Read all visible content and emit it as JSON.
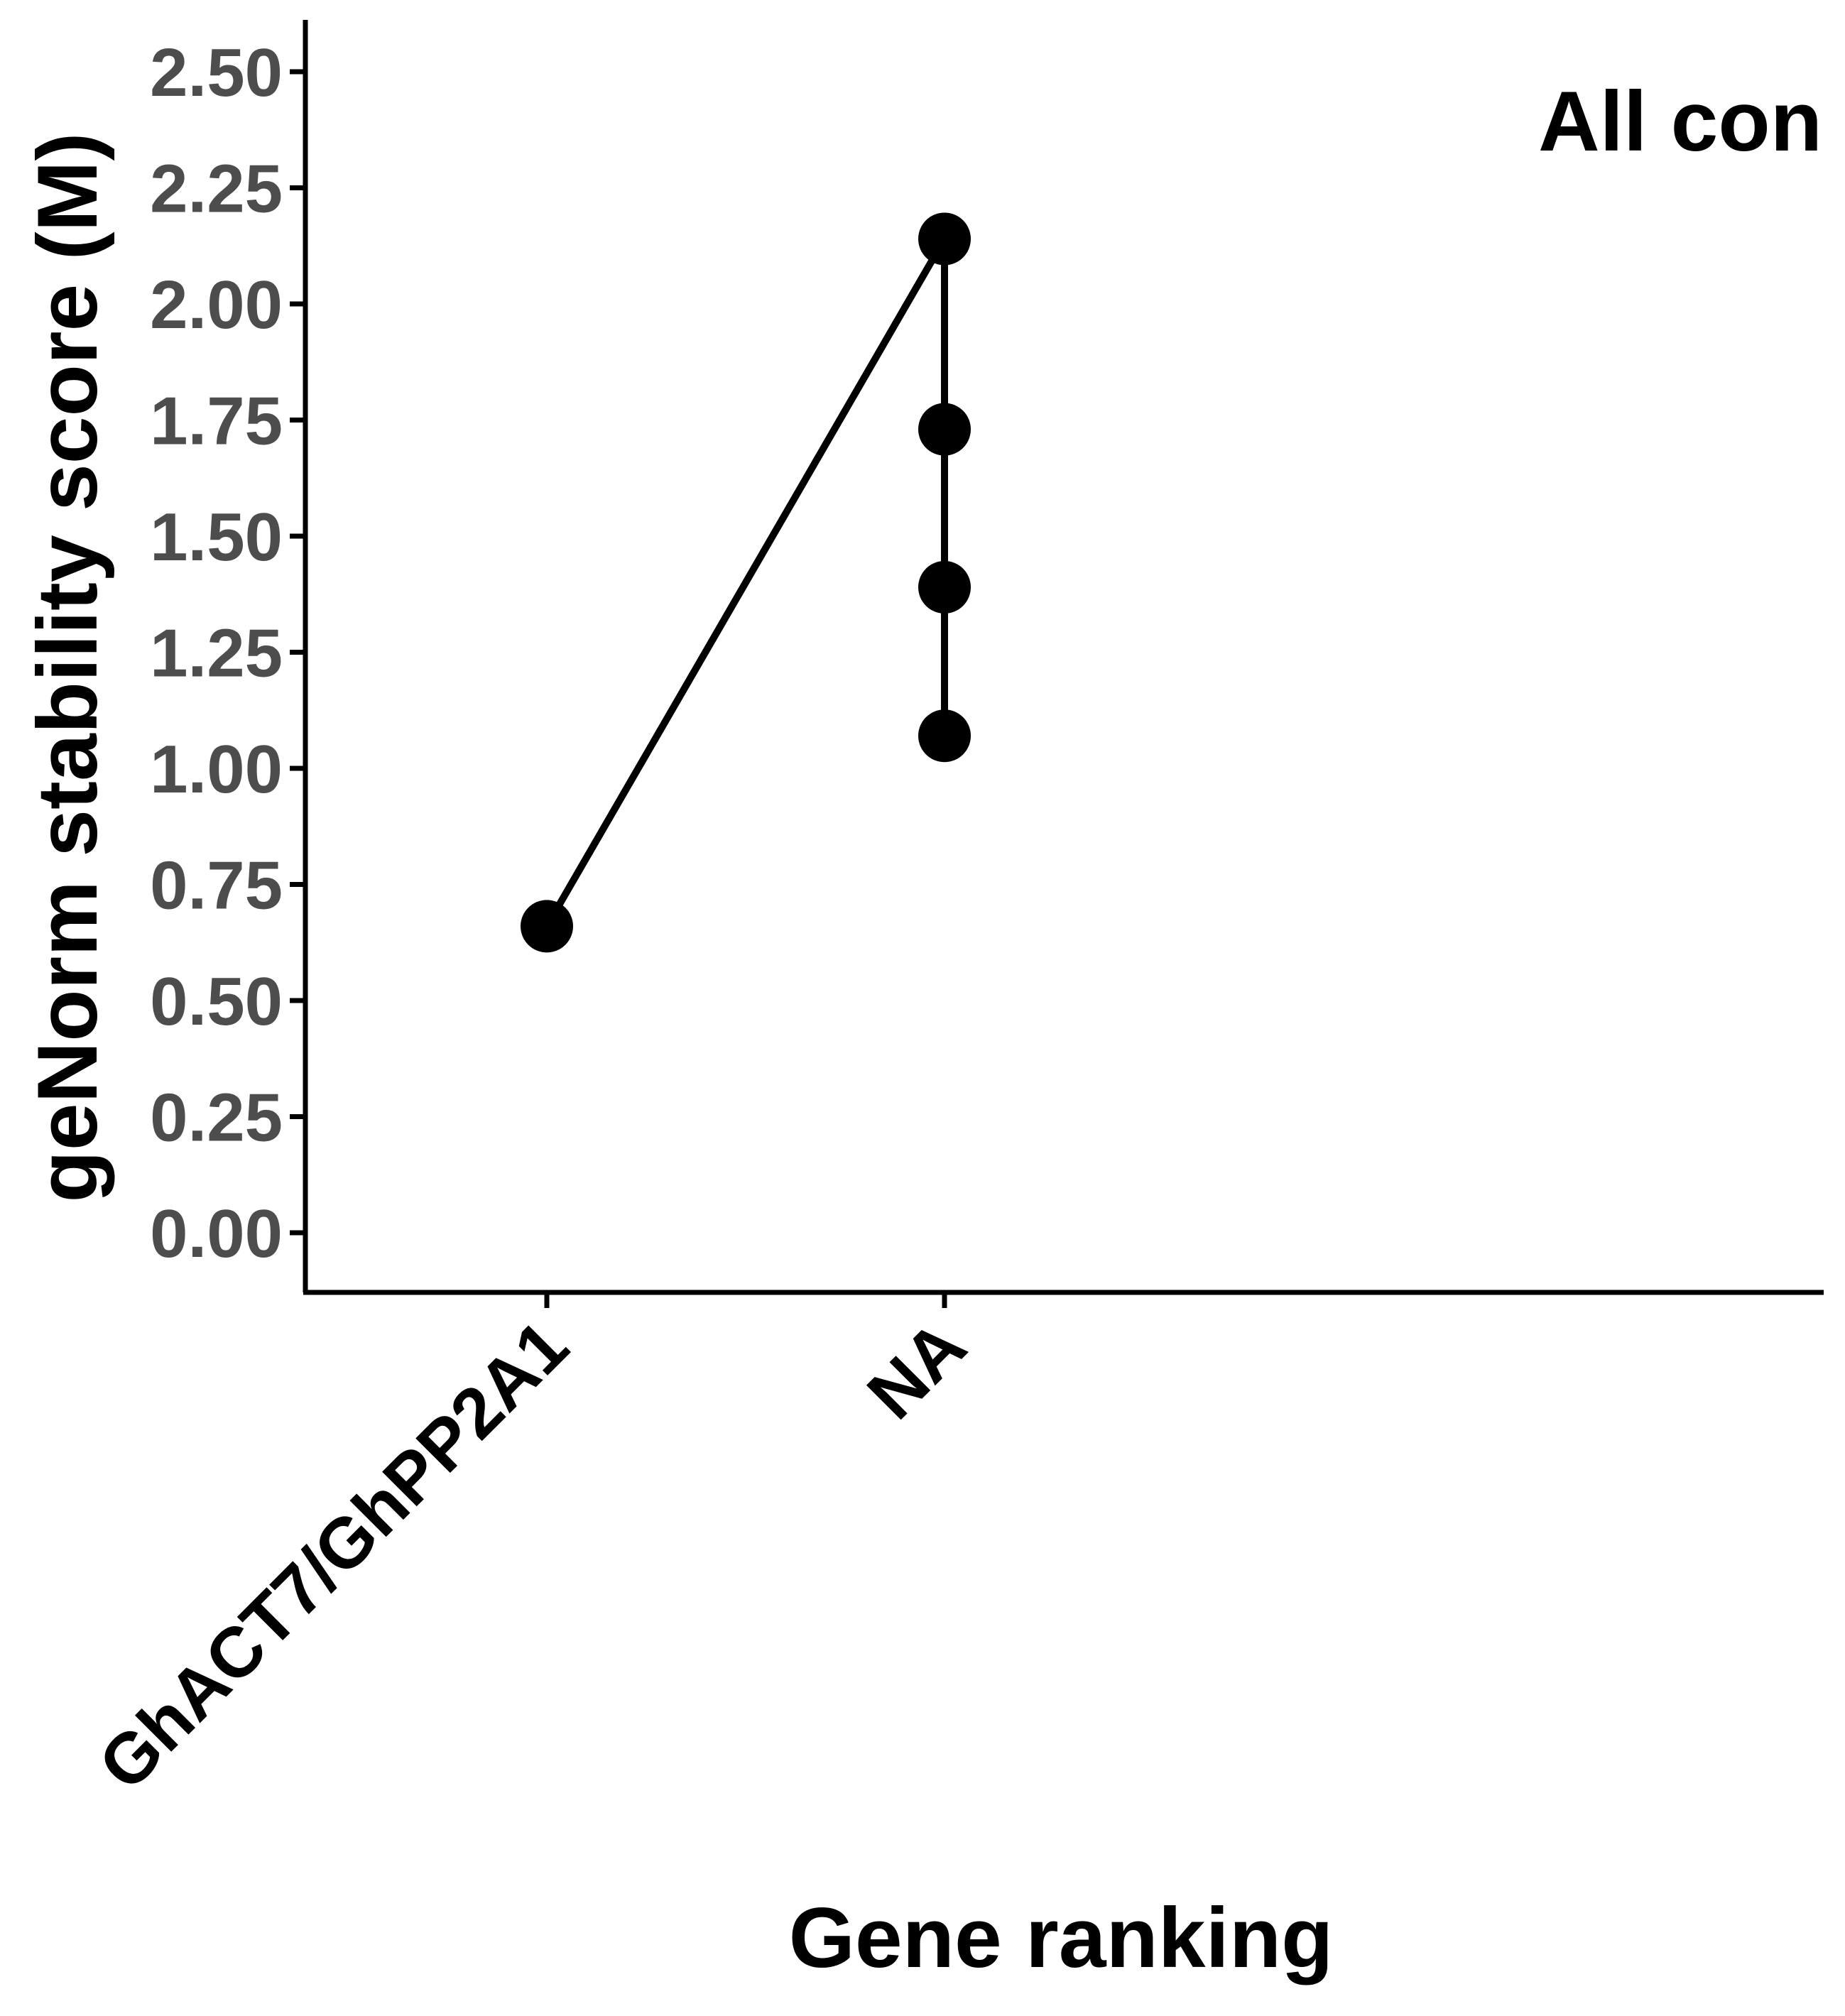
{
  "chart_data": {
    "type": "line",
    "title": "",
    "panel_label": "All con",
    "xlabel": "Gene ranking",
    "ylabel": "geNorm stability score (M)",
    "categories": [
      "GhACT7/GhPP2A1",
      "NA"
    ],
    "y_ticks": [
      "0.00",
      "0.25",
      "0.50",
      "0.75",
      "1.00",
      "1.25",
      "1.50",
      "1.75",
      "2.00",
      "2.25",
      "2.50"
    ],
    "ylim": [
      -0.12,
      2.62
    ],
    "grid": false,
    "legend": "none",
    "series": [
      {
        "points": [
          {
            "x": "GhACT7/GhPP2A1",
            "y": 0.66
          },
          {
            "x": "NA",
            "y": 2.14
          },
          {
            "x": "NA",
            "y": 1.73
          },
          {
            "x": "NA",
            "y": 1.39
          },
          {
            "x": "NA",
            "y": 1.07
          }
        ]
      }
    ],
    "colors": {
      "line": "#000000",
      "point": "#000000",
      "tick_text": "#4d4d4d",
      "axis": "#000000"
    }
  }
}
